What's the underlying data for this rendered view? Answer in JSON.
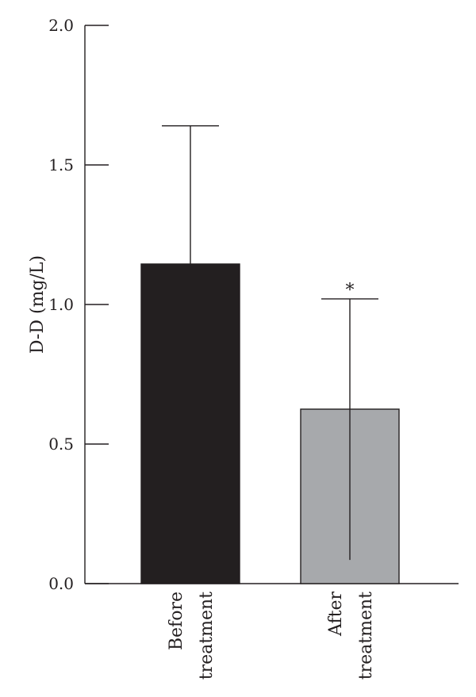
{
  "chart_data": {
    "type": "bar",
    "ylabel": "D-D (mg/L)",
    "xlabel": "",
    "ylim": [
      0,
      2.0
    ],
    "yticks": [
      0.0,
      0.5,
      1.0,
      1.5,
      2.0
    ],
    "ytick_labels": [
      "0.0",
      "0.5",
      "1.0",
      "1.5",
      "2.0"
    ],
    "grid": false,
    "categories": [
      {
        "lines": [
          "Before",
          "treatment"
        ]
      },
      {
        "lines": [
          "After",
          "treatment"
        ]
      }
    ],
    "values": [
      1.145,
      0.625
    ],
    "error_upper": [
      1.64,
      1.02
    ],
    "error_lower": [
      null,
      0.085
    ],
    "colors": [
      "#231f20",
      "#a7a9ac"
    ],
    "annotations": [
      {
        "category_index": 1,
        "text": "*"
      }
    ]
  }
}
